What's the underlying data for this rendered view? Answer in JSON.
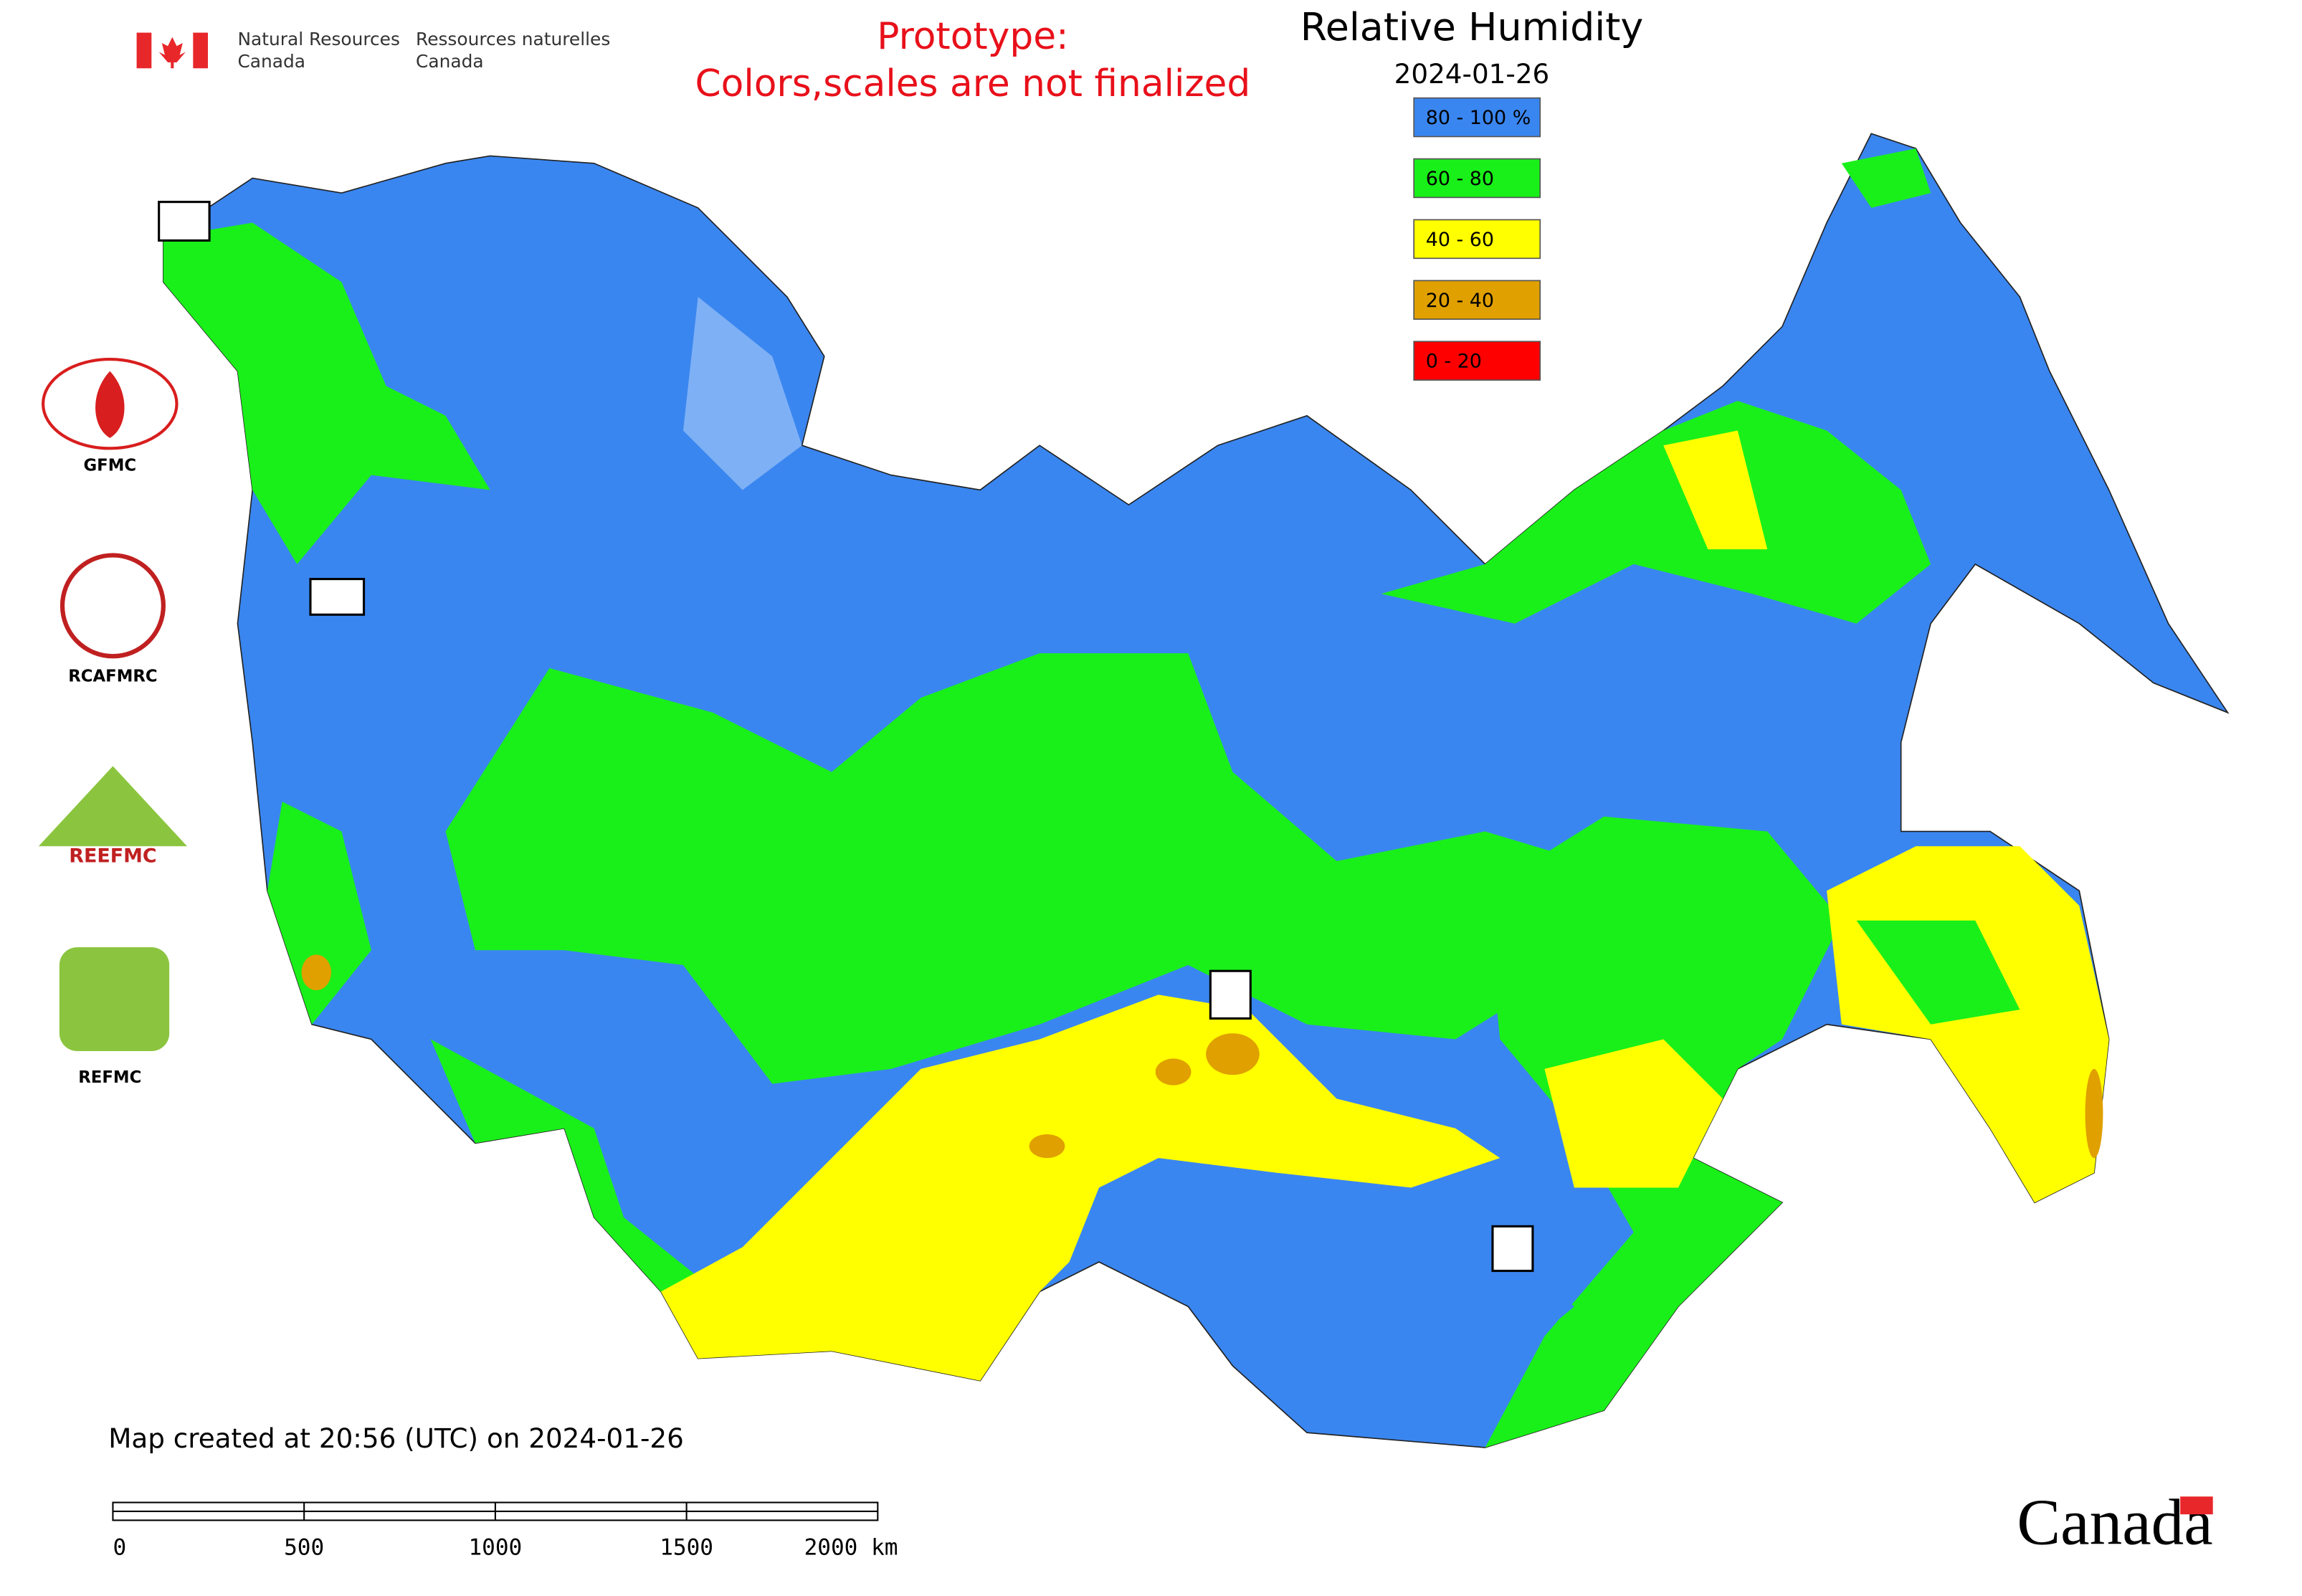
{
  "header": {
    "org_en": [
      "Natural Resources",
      "Canada"
    ],
    "org_fr": [
      "Ressources naturelles",
      "Canada"
    ],
    "note": [
      "Prototype:",
      "Colors,scales are not finalized"
    ]
  },
  "map": {
    "title": "Relative Humidity",
    "date": "2024-01-26",
    "legend": [
      {
        "label": "80 - 100 %",
        "color": "#3a86f0"
      },
      {
        "label": "60 - 80",
        "color": "#19f019"
      },
      {
        "label": "40 - 60",
        "color": "#ffff00"
      },
      {
        "label": "20 - 40",
        "color": "#e0a000"
      },
      {
        "label": "0 - 20",
        "color": "#ff0000"
      }
    ],
    "created": "Map created at 20:56 (UTC) on 2024-01-26",
    "scale_labels": [
      "0",
      "500",
      "1000",
      "1500",
      "2000 km"
    ]
  },
  "logos": [
    {
      "label": "GFMC"
    },
    {
      "label": "RCAFMRC"
    },
    {
      "label": "REEFMC"
    },
    {
      "label": "REFMC"
    }
  ],
  "footer": {
    "wordmark": "Canada"
  }
}
